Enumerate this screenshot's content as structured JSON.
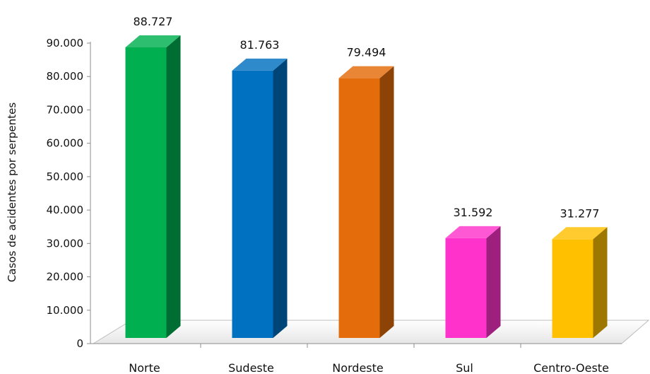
{
  "chart_data": {
    "type": "bar",
    "style": "3d-column",
    "categories": [
      "Norte",
      "Sudeste",
      "Nordeste",
      "Sul",
      "Centro-Oeste"
    ],
    "values": [
      88727,
      81763,
      79494,
      31592,
      31277
    ],
    "data_labels": [
      "88.727",
      "81.763",
      "79.494",
      "31.592",
      "31.277"
    ],
    "colors": [
      "#00B050",
      "#0070C0",
      "#E46C0A",
      "#FF33CC",
      "#FFC000"
    ],
    "title": "",
    "xlabel": "",
    "ylabel": "Casos de acidentes por serpentes",
    "ylim": [
      0,
      90000
    ],
    "yticks": [
      0,
      10000,
      20000,
      30000,
      40000,
      50000,
      60000,
      70000,
      80000,
      90000
    ],
    "ytick_labels": [
      "0",
      "10.000",
      "20.000",
      "30.000",
      "40.000",
      "50.000",
      "60.000",
      "70.000",
      "80.000",
      "90.000"
    ],
    "grid": false,
    "legend": "none"
  }
}
